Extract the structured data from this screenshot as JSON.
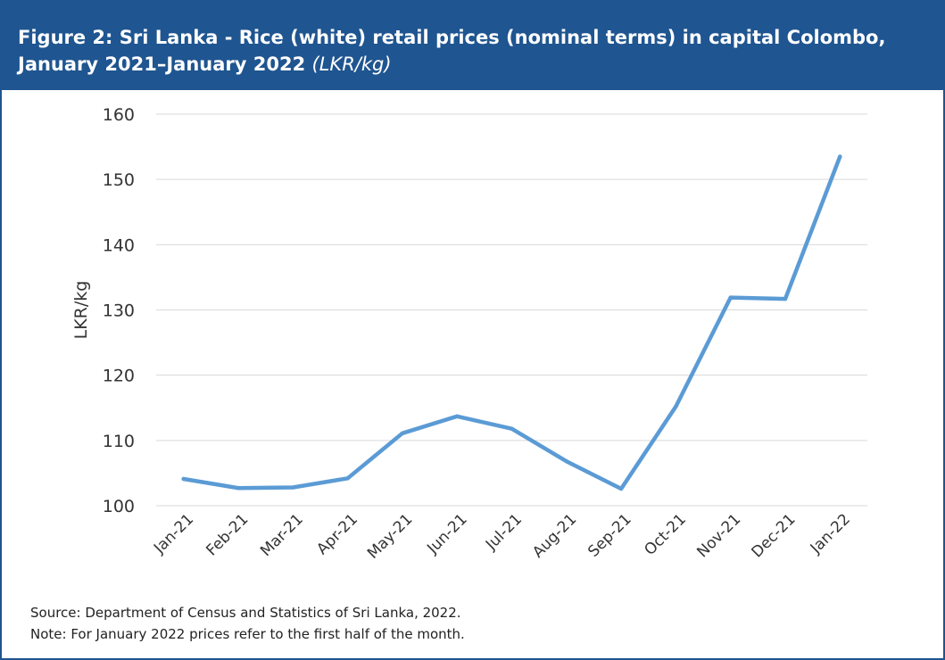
{
  "title_main": "Figure 2: Sri Lanka - Rice (white) retail prices (nominal terms) in capital Colombo, January 2021–January 2022",
  "title_unit": "(LKR/kg)",
  "source": "Source: Department of Census and Statistics of Sri Lanka, 2022.",
  "note": "Note: For January 2022 prices refer to the first half of the month.",
  "colors": {
    "header": "#1f5590",
    "line": "#5b9bd5",
    "grid": "#d9d9d9"
  },
  "chart_data": {
    "type": "line",
    "ylabel": "LKR/kg",
    "xlabel": "",
    "ylim": [
      100,
      160
    ],
    "yticks": [
      100,
      110,
      120,
      130,
      140,
      150,
      160
    ],
    "categories": [
      "Jan-21",
      "Feb-21",
      "Mar-21",
      "Apr-21",
      "May-21",
      "Jun-21",
      "Jul-21",
      "Aug-21",
      "Sep-21",
      "Oct-21",
      "Nov-21",
      "Dec-21",
      "Jan-22"
    ],
    "values": [
      104.1,
      102.7,
      102.8,
      104.2,
      111.1,
      113.7,
      111.8,
      106.8,
      102.6,
      115.2,
      131.9,
      131.7,
      153.5
    ],
    "grid": true,
    "legend": "none"
  }
}
